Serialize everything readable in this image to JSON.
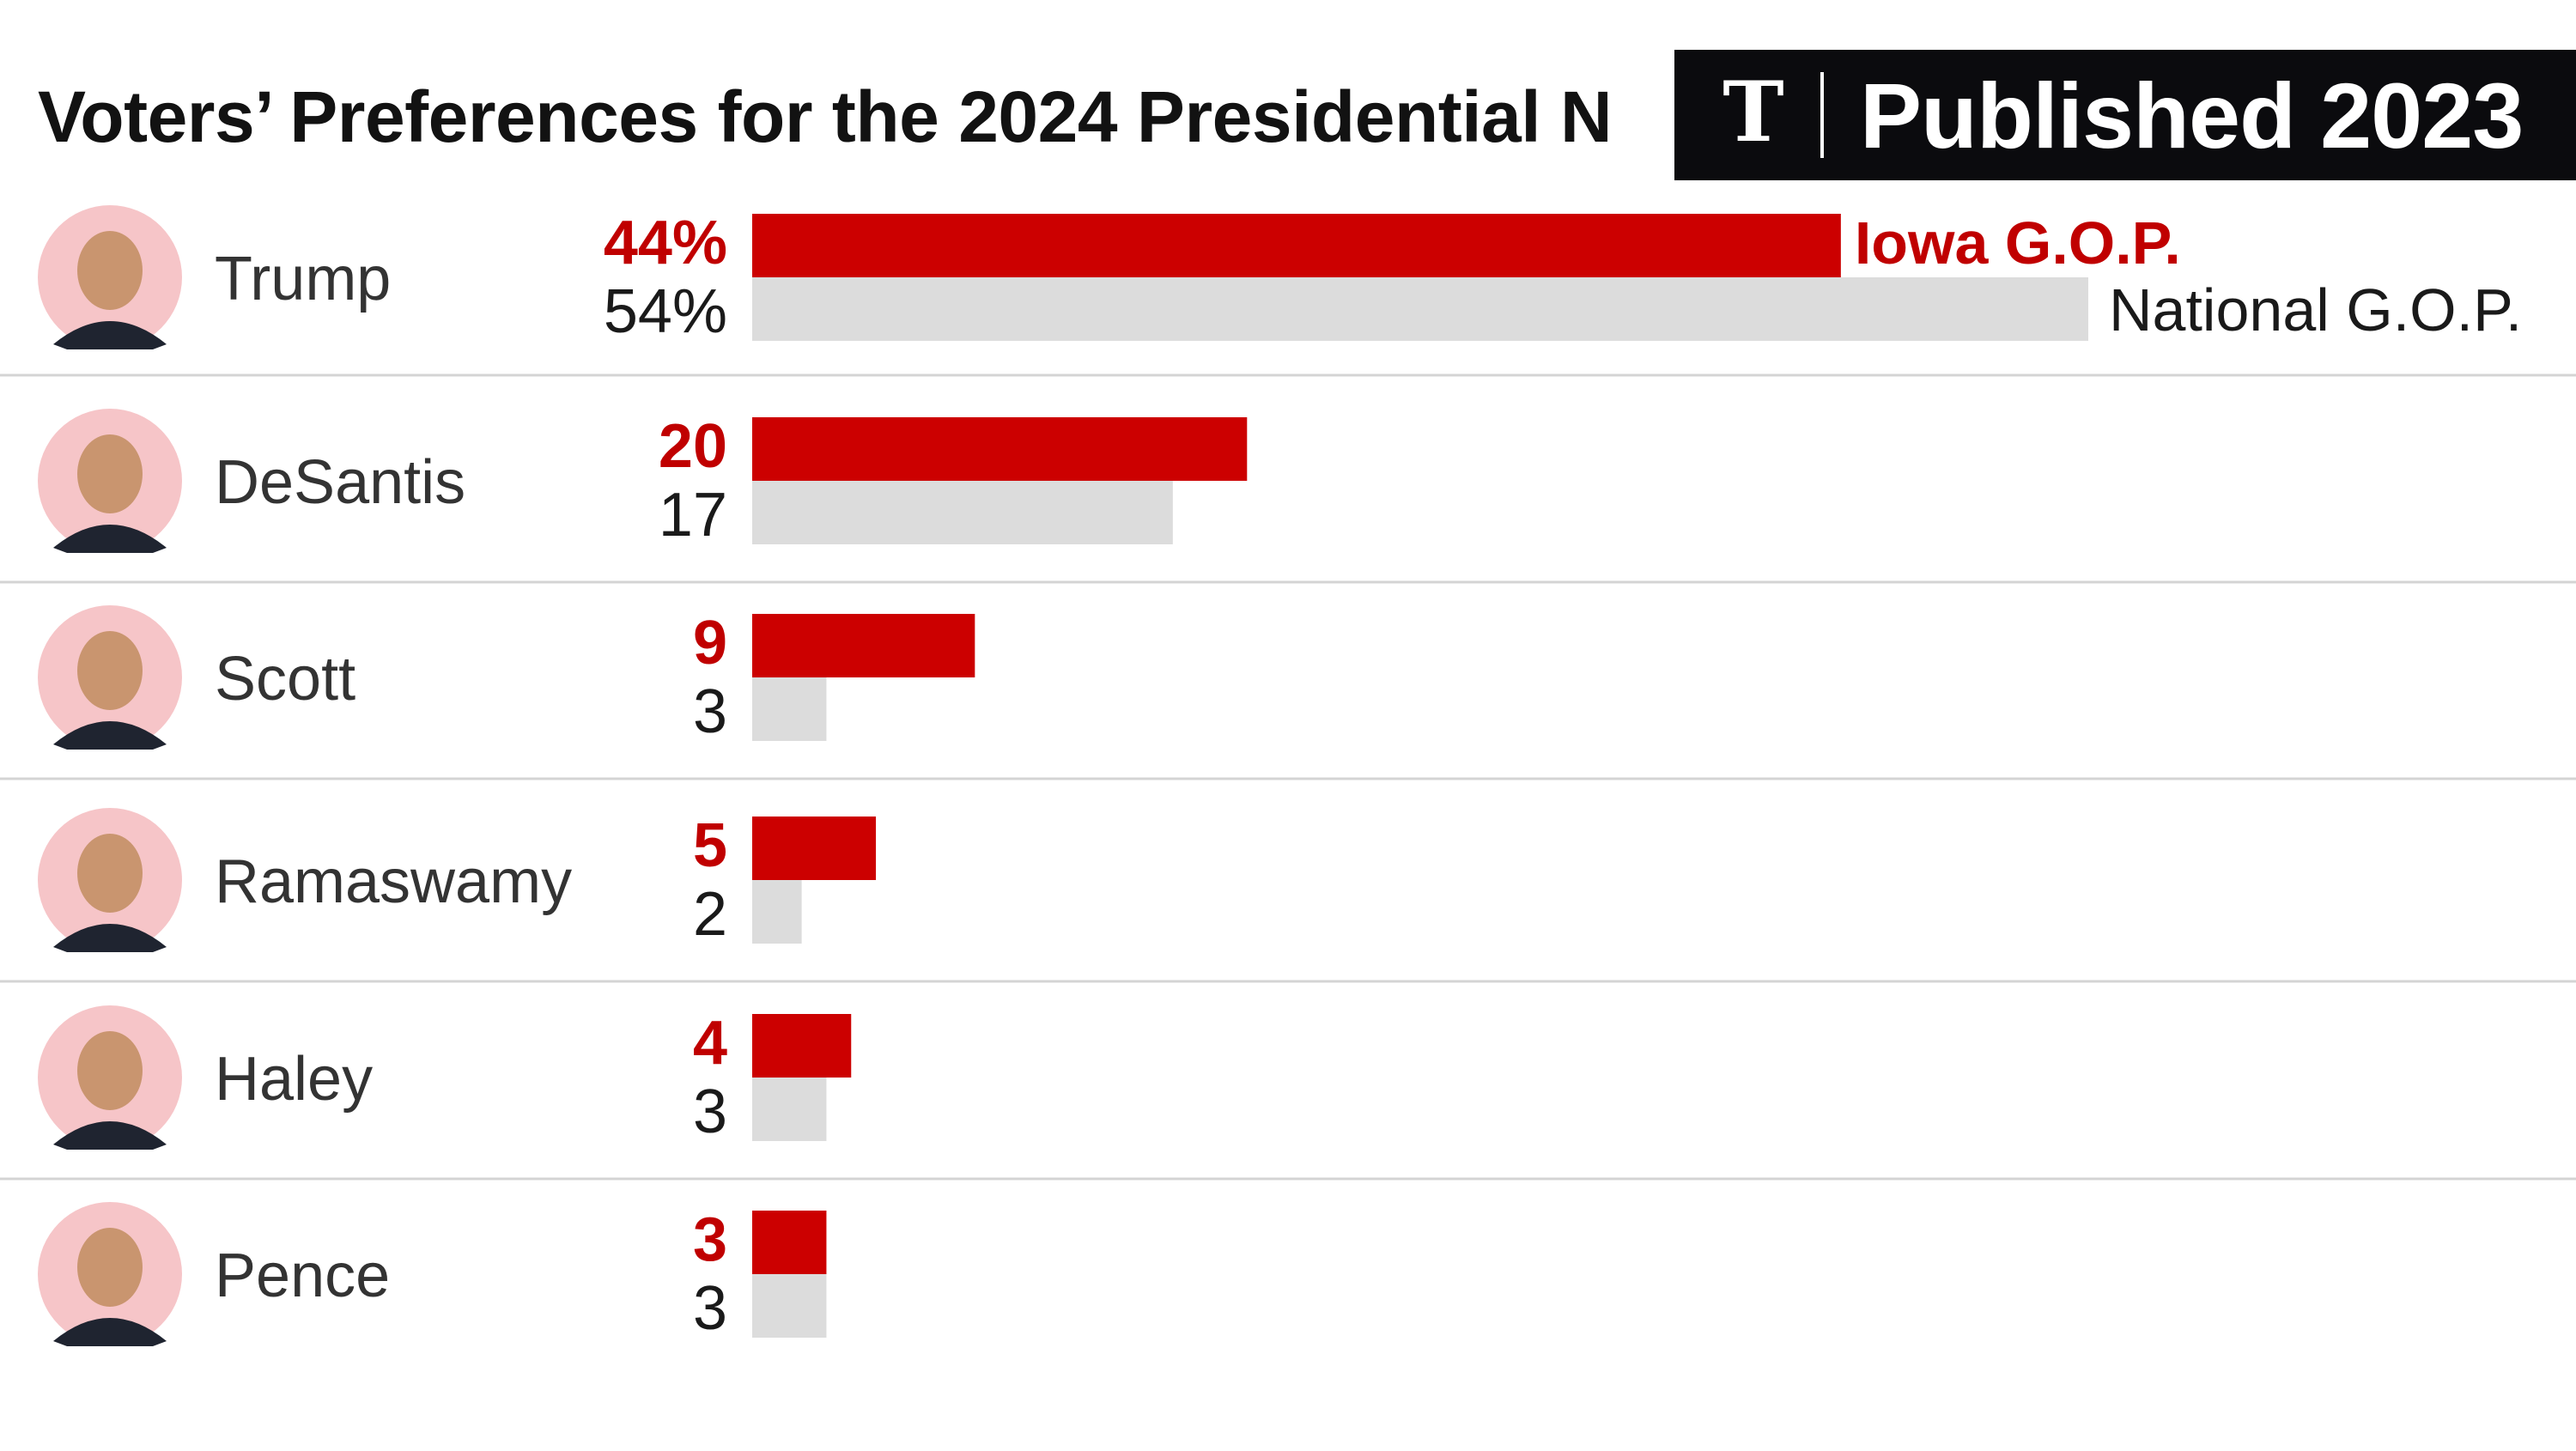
{
  "chart_data": {
    "type": "bar",
    "orientation": "horizontal",
    "title": "Voters’ Preferences for the 2024 Presidential N",
    "categories": [
      "Trump",
      "DeSantis",
      "Scott",
      "Ramaswamy",
      "Haley",
      "Pence"
    ],
    "series": [
      {
        "name": "Iowa G.O.P.",
        "color": "#cc0000",
        "values": [
          44,
          20,
          9,
          5,
          4,
          3
        ],
        "labels": [
          "44%",
          "20",
          "9",
          "5",
          "4",
          "3"
        ]
      },
      {
        "name": "National G.O.P.",
        "color": "#dcdcdc",
        "values": [
          54,
          17,
          3,
          2,
          3,
          3
        ],
        "labels": [
          "54%",
          "17",
          "3",
          "2",
          "3",
          "3"
        ]
      }
    ],
    "xlim": [
      0,
      54
    ],
    "grid": false,
    "legend": "inline-right-of-first-row"
  },
  "badge": {
    "logo_icon": "nyt-logo-icon",
    "text": "Published 2023"
  },
  "colors": {
    "iowa": "#cc0000",
    "national": "#dcdcdc",
    "avatar_bg": "#f6c5c8",
    "divider": "#d4d4d4"
  }
}
